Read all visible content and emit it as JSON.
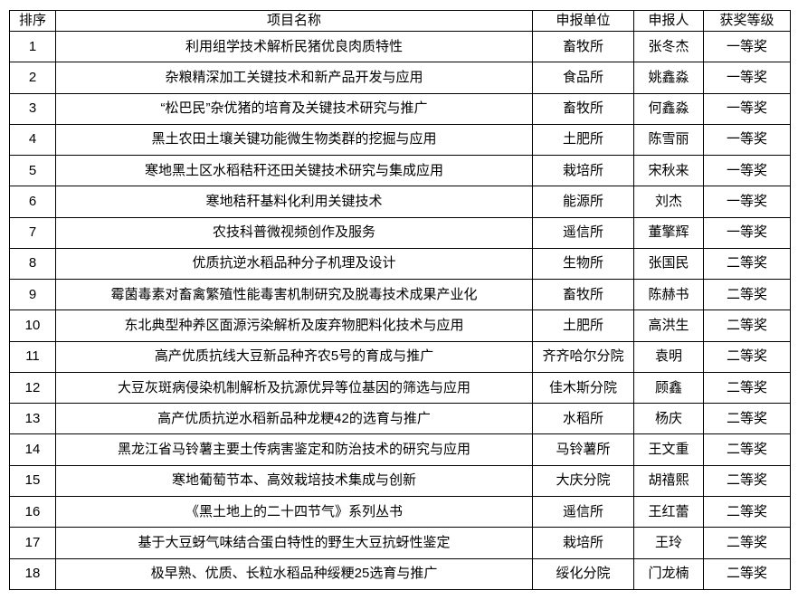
{
  "table": {
    "headers": {
      "rank": "排序",
      "project": "项目名称",
      "unit": "申报单位",
      "applicant": "申报人",
      "award": "获奖等级"
    },
    "rows": [
      {
        "rank": "1",
        "project": "利用组学技术解析民猪优良肉质特性",
        "unit": "畜牧所",
        "applicant": "张冬杰",
        "award": "一等奖"
      },
      {
        "rank": "2",
        "project": "杂粮精深加工关键技术和新产品开发与应用",
        "unit": "食品所",
        "applicant": "姚鑫淼",
        "award": "一等奖"
      },
      {
        "rank": "3",
        "project": "“松巴民”杂优猪的培育及关键技术研究与推广",
        "unit": "畜牧所",
        "applicant": "何鑫淼",
        "award": "一等奖"
      },
      {
        "rank": "4",
        "project": "黑土农田土壤关键功能微生物类群的挖掘与应用",
        "unit": "土肥所",
        "applicant": "陈雪丽",
        "award": "一等奖"
      },
      {
        "rank": "5",
        "project": "寒地黑土区水稻秸秆还田关键技术研究与集成应用",
        "unit": "栽培所",
        "applicant": "宋秋来",
        "award": "一等奖"
      },
      {
        "rank": "6",
        "project": "寒地秸秆基料化利用关键技术",
        "unit": "能源所",
        "applicant": "刘杰",
        "award": "一等奖"
      },
      {
        "rank": "7",
        "project": "农技科普微视频创作及服务",
        "unit": "遥信所",
        "applicant": "董擎辉",
        "award": "一等奖"
      },
      {
        "rank": "8",
        "project": "优质抗逆水稻品种分子机理及设计",
        "unit": "生物所",
        "applicant": "张国民",
        "award": "二等奖"
      },
      {
        "rank": "9",
        "project": "霉菌毒素对畜禽繁殖性能毒害机制研究及脱毒技术成果产业化",
        "unit": "畜牧所",
        "applicant": "陈赫书",
        "award": "二等奖"
      },
      {
        "rank": "10",
        "project": "东北典型种养区面源污染解析及废弃物肥料化技术与应用",
        "unit": "土肥所",
        "applicant": "高洪生",
        "award": "二等奖"
      },
      {
        "rank": "11",
        "project": "高产优质抗线大豆新品种齐农5号的育成与推广",
        "unit": "齐齐哈尔分院",
        "applicant": "袁明",
        "award": "二等奖"
      },
      {
        "rank": "12",
        "project": "大豆灰斑病侵染机制解析及抗源优异等位基因的筛选与应用",
        "unit": "佳木斯分院",
        "applicant": "顾鑫",
        "award": "二等奖"
      },
      {
        "rank": "13",
        "project": "高产优质抗逆水稻新品种龙粳42的选育与推广",
        "unit": "水稻所",
        "applicant": "杨庆",
        "award": "二等奖"
      },
      {
        "rank": "14",
        "project": "黑龙江省马铃薯主要土传病害鉴定和防治技术的研究与应用",
        "unit": "马铃薯所",
        "applicant": "王文重",
        "award": "二等奖"
      },
      {
        "rank": "15",
        "project": "寒地葡萄节本、高效栽培技术集成与创新",
        "unit": "大庆分院",
        "applicant": "胡禧熙",
        "award": "二等奖"
      },
      {
        "rank": "16",
        "project": "《黑土地上的二十四节气》系列丛书",
        "unit": "遥信所",
        "applicant": "王红蕾",
        "award": "二等奖"
      },
      {
        "rank": "17",
        "project": "基于大豆蚜气味结合蛋白特性的野生大豆抗蚜性鉴定",
        "unit": "栽培所",
        "applicant": "王玲",
        "award": "二等奖"
      },
      {
        "rank": "18",
        "project": "极早熟、优质、长粒水稻品种绥粳25选育与推广",
        "unit": "绥化分院",
        "applicant": "门龙楠",
        "award": "二等奖"
      }
    ]
  }
}
